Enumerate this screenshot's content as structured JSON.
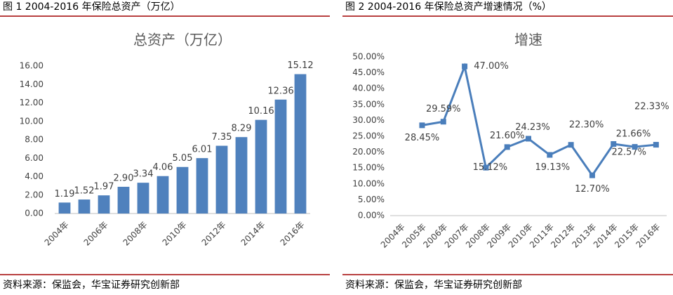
{
  "chart_data": [
    {
      "type": "bar",
      "caption": "图 1   2004-2016 年保险总资产（万亿）",
      "title": "总资产（万亿）",
      "source": "资料来源：保监会，华宝证券研究创新部",
      "categories": [
        "2004年",
        null,
        "2006年",
        null,
        "2008年",
        null,
        "2010年",
        null,
        "2012年",
        null,
        "2014年",
        null,
        "2016年"
      ],
      "values": [
        1.19,
        1.52,
        1.97,
        2.9,
        3.34,
        4.06,
        5.05,
        6.01,
        7.35,
        8.29,
        10.16,
        12.36,
        15.12
      ],
      "value_labels": [
        "1.19",
        "1.52",
        "1.97",
        "2.90",
        "3.34",
        "4.06",
        "5.05",
        "6.01",
        "7.35",
        "8.29",
        "10.16",
        "12.36",
        "15.12"
      ],
      "color": "#4f81bd",
      "ylim": [
        0,
        16
      ],
      "yticks": [
        {
          "value": 0,
          "label": "0.00"
        },
        {
          "value": 2,
          "label": "2.00"
        },
        {
          "value": 4,
          "label": "4.00"
        },
        {
          "value": 6,
          "label": "6.00"
        },
        {
          "value": 8,
          "label": "8.00"
        },
        {
          "value": 10,
          "label": "10.00"
        },
        {
          "value": 12,
          "label": "12.00"
        },
        {
          "value": 14,
          "label": "14.00"
        },
        {
          "value": 16,
          "label": "16.00"
        }
      ]
    },
    {
      "type": "line",
      "caption": "图 2   2004-2016 年保险总资产增速情况（%）",
      "title": "增速",
      "source": "资料来源：保监会，华宝证券研究创新部",
      "categories": [
        "2004年",
        "2005年",
        "2006年",
        "2007年",
        "2008年",
        "2009年",
        "2010年",
        "2011年",
        "2012年",
        "2013年",
        "2014年",
        "2015年",
        "2016年"
      ],
      "values": [
        null,
        28.45,
        29.59,
        47.0,
        15.12,
        21.6,
        24.23,
        19.13,
        22.3,
        12.7,
        22.57,
        21.66,
        22.33
      ],
      "value_labels": [
        null,
        "28.45%",
        "29.59%",
        "47.00%",
        "15.12%",
        "21.60%",
        "24.23%",
        "19.13%",
        "22.30%",
        "12.70%",
        "22.57%",
        "21.66%",
        "22.33%"
      ],
      "color": "#4a7ebb",
      "ylim": [
        0,
        50
      ],
      "yticks": [
        {
          "value": 0,
          "label": "0.00%"
        },
        {
          "value": 5,
          "label": "5.00%"
        },
        {
          "value": 10,
          "label": "10.00%"
        },
        {
          "value": 15,
          "label": "15.00%"
        },
        {
          "value": 20,
          "label": "20.00%"
        },
        {
          "value": 25,
          "label": "25.00%"
        },
        {
          "value": 30,
          "label": "30.00%"
        },
        {
          "value": 35,
          "label": "35.00%"
        },
        {
          "value": 40,
          "label": "40.00%"
        },
        {
          "value": 45,
          "label": "45.00%"
        },
        {
          "value": 50,
          "label": "50.00%"
        }
      ]
    }
  ]
}
